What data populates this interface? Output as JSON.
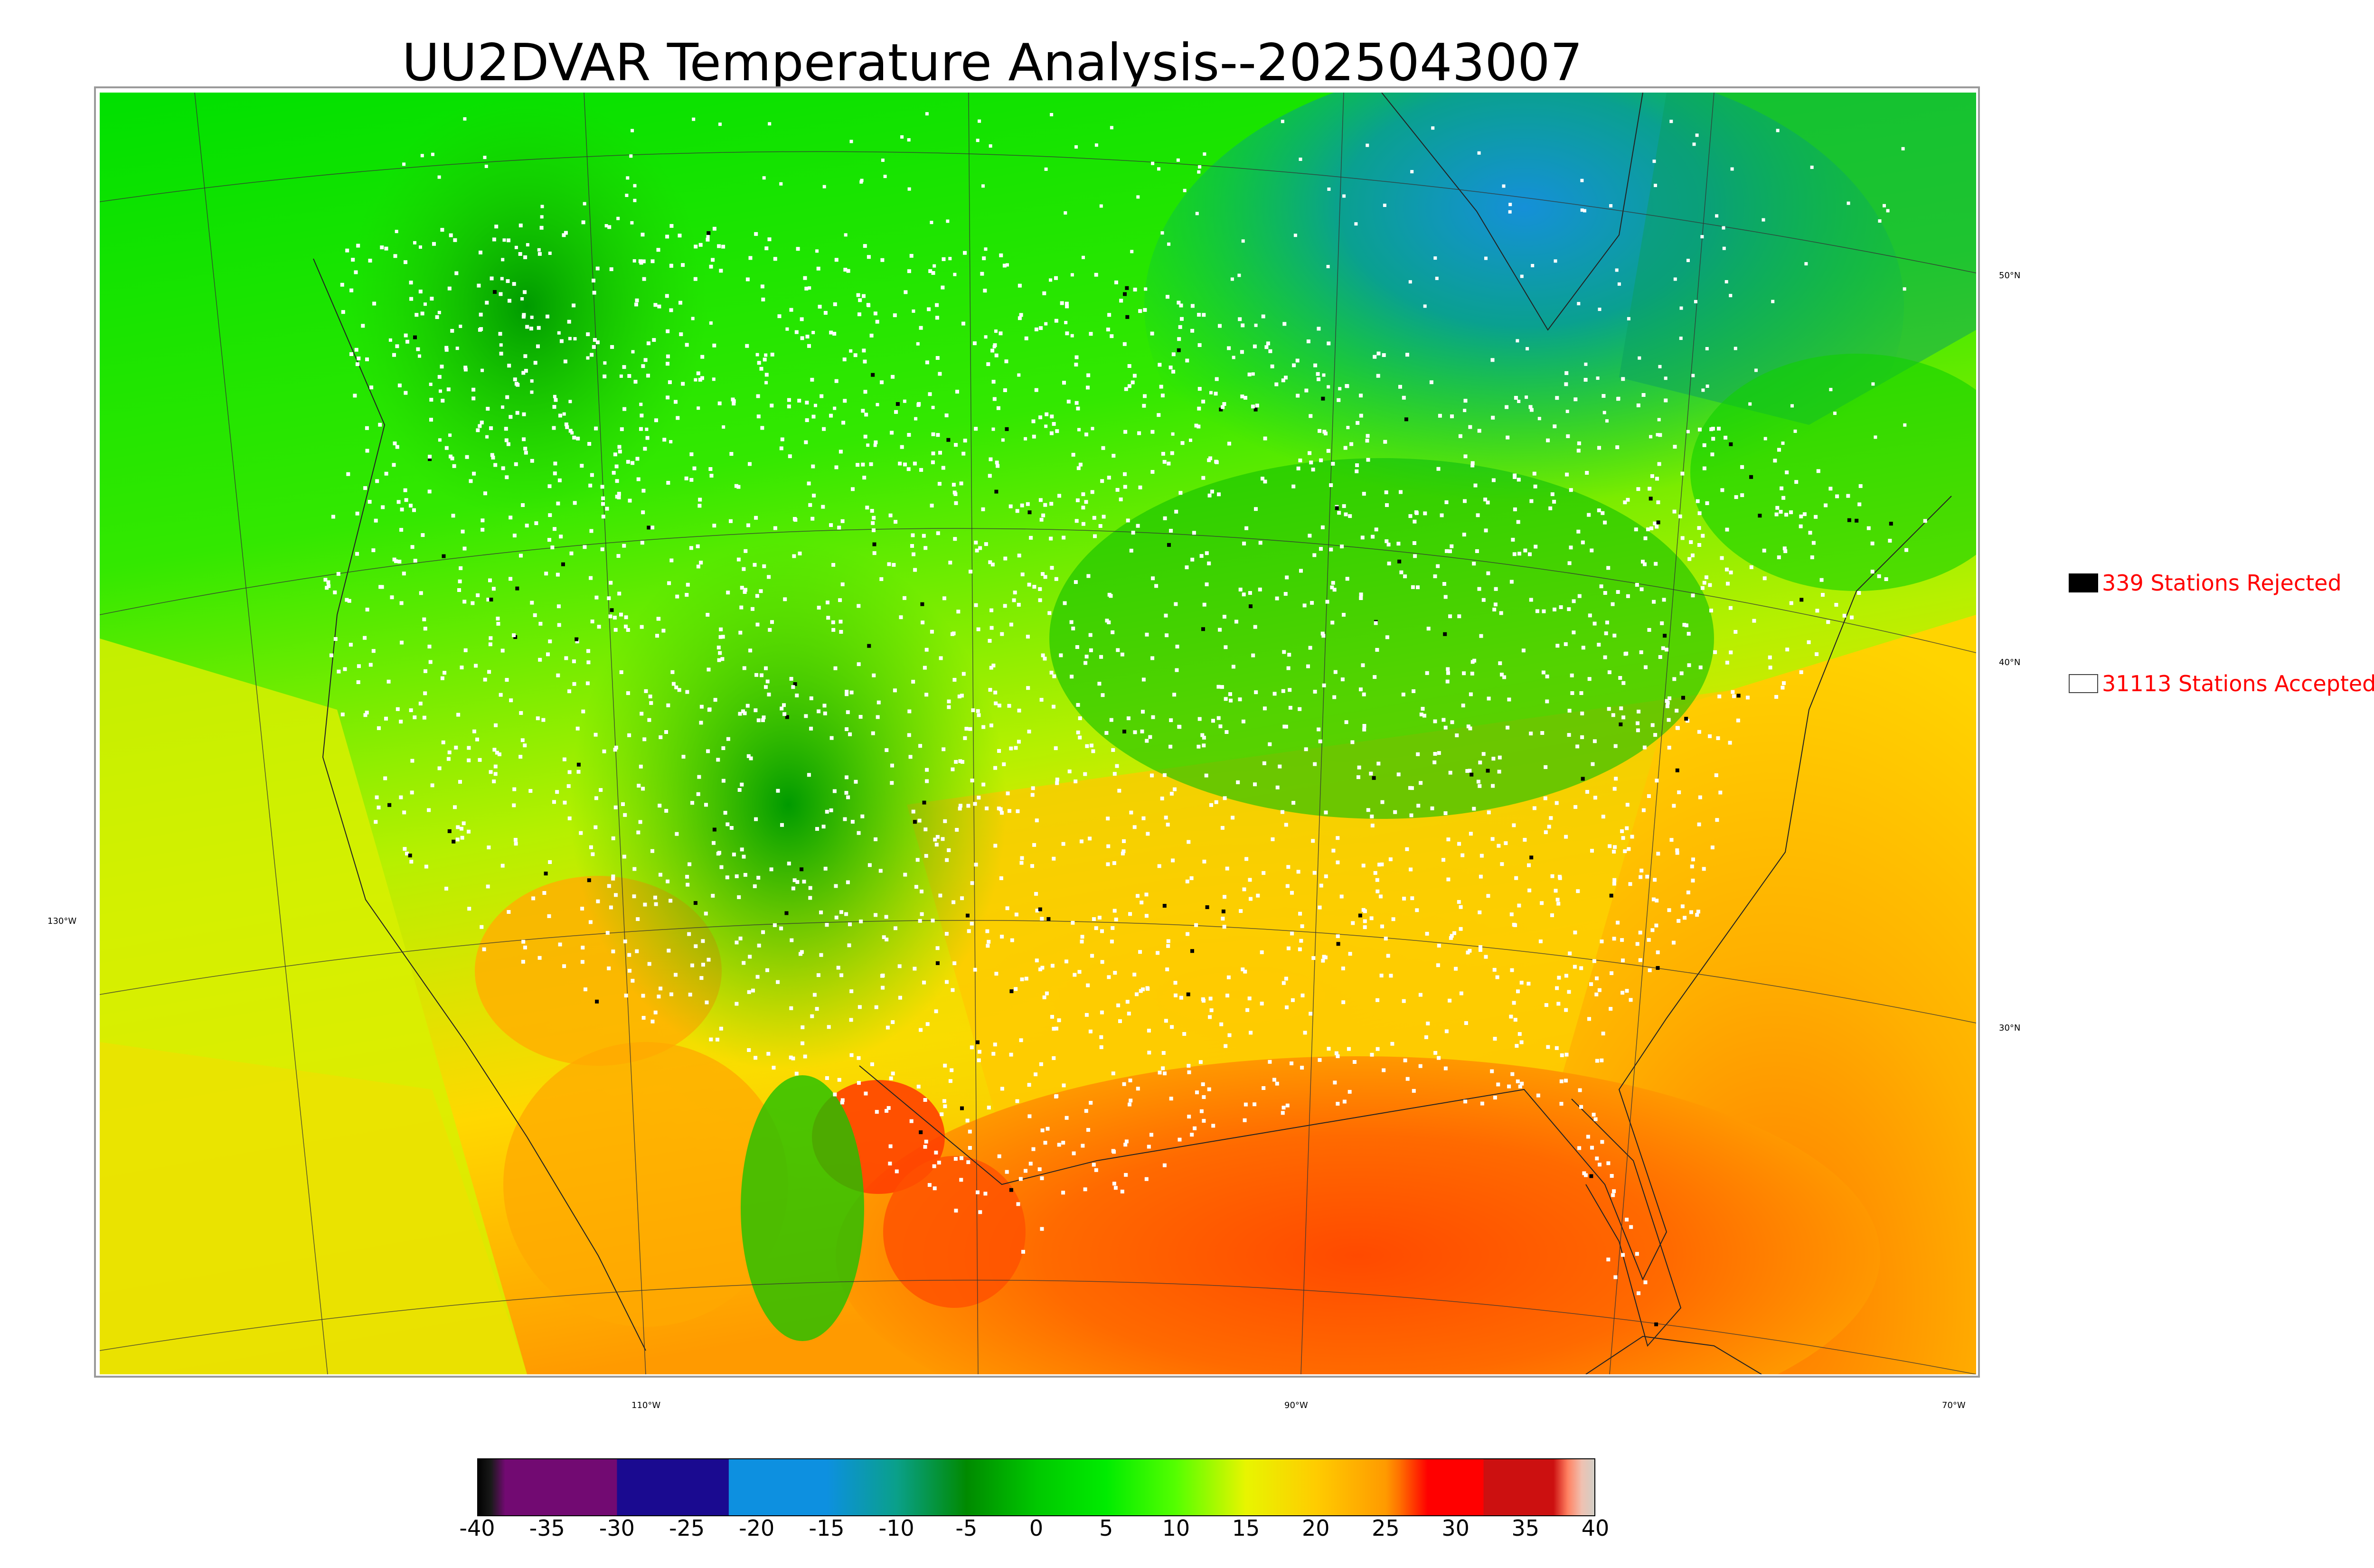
{
  "title": "UU2DVAR Temperature Analysis--2025043007",
  "map": {
    "field": "2-m temperature analysis",
    "projection": "Lambert conformal",
    "lat_labels": [
      "50°N",
      "40°N",
      "30°N"
    ],
    "lon_labels": [
      "130°W",
      "110°W",
      "90°W",
      "70°W"
    ],
    "colors": {
      "ocean_south": "#ff7a00",
      "gulf_hot": "#ff5a00",
      "southern_plains": "#ffd200",
      "midwest_green": "#6cf000",
      "rockies_green": "#11b800",
      "canada_green": "#00d000",
      "canada_cold": "#0aa08a",
      "hudson_cold": "#1f8fd0",
      "pacific": "#55e830",
      "west_coast_yellow": "#dcf000",
      "station_accepted": "#ffffff",
      "station_rejected": "#000000"
    }
  },
  "legend": {
    "rejected": {
      "label": "339 Stations Rejected",
      "count": 339,
      "swatch": "#000000"
    },
    "accepted": {
      "label": "31113 Stations Accepted",
      "count": 31113,
      "swatch": "#ffffff"
    }
  },
  "colorbar": {
    "min": -40,
    "max": 40,
    "ticks": [
      "-40",
      "-35",
      "-30",
      "-25",
      "-20",
      "-15",
      "-10",
      "-5",
      "0",
      "5",
      "10",
      "15",
      "20",
      "25",
      "30",
      "35",
      "40"
    ],
    "stops": [
      {
        "value": -40,
        "color": "#000000"
      },
      {
        "value": -39,
        "color": "#1a1a1a"
      },
      {
        "value": -38,
        "color": "#720a72"
      },
      {
        "value": -30,
        "color": "#720a72"
      },
      {
        "value": -30,
        "color": "#1a0a90"
      },
      {
        "value": -22,
        "color": "#1a0a90"
      },
      {
        "value": -22,
        "color": "#0d90e0"
      },
      {
        "value": -15,
        "color": "#0d90e0"
      },
      {
        "value": -10,
        "color": "#0aa08a"
      },
      {
        "value": -5,
        "color": "#008a00"
      },
      {
        "value": 0,
        "color": "#00c800"
      },
      {
        "value": 5,
        "color": "#00ec00"
      },
      {
        "value": 10,
        "color": "#55ff00"
      },
      {
        "value": 15,
        "color": "#e8f500"
      },
      {
        "value": 20,
        "color": "#ffcc00"
      },
      {
        "value": 25,
        "color": "#ff9a00"
      },
      {
        "value": 26,
        "color": "#ff7000"
      },
      {
        "value": 28,
        "color": "#ff0000"
      },
      {
        "value": 32,
        "color": "#ff0000"
      },
      {
        "value": 32,
        "color": "#cc1010"
      },
      {
        "value": 37,
        "color": "#cc1010"
      },
      {
        "value": 38,
        "color": "#ff8060"
      },
      {
        "value": 39,
        "color": "#f0c0b0"
      },
      {
        "value": 40,
        "color": "#d0d0c8"
      }
    ]
  }
}
